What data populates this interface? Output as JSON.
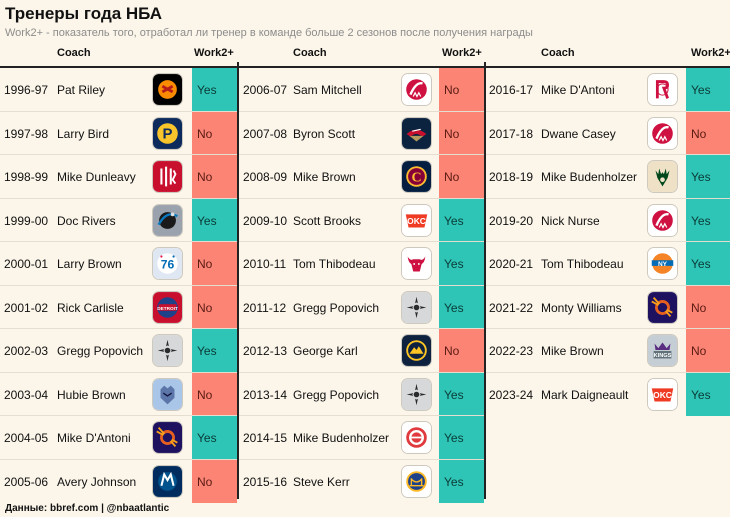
{
  "title": "Тренеры года НБА",
  "subtitle": "Work2+ - показатель того, отработал ли тренер в команде больше 2 сезонов после получения награды",
  "source": "Данные: bbref.com | @nbaatlantic",
  "headers": {
    "coach": "Coach",
    "work2": "Work2+"
  },
  "colors": {
    "yes": "#2ec4b6",
    "no": "#fb8475",
    "background": "#fcf6ea"
  },
  "columns": [
    {
      "rows": [
        {
          "season": "1996-97",
          "coach": "Pat Riley",
          "team": "heat-logo",
          "work2": "Yes"
        },
        {
          "season": "1997-98",
          "coach": "Larry Bird",
          "team": "pacers-logo",
          "work2": "No"
        },
        {
          "season": "1998-99",
          "coach": "Mike Dunleavy",
          "team": "trail-blazers-logo",
          "work2": "No"
        },
        {
          "season": "1999-00",
          "coach": "Doc Rivers",
          "team": "magic-logo",
          "work2": "Yes"
        },
        {
          "season": "2000-01",
          "coach": "Larry Brown",
          "team": "76ers-logo",
          "work2": "No"
        },
        {
          "season": "2001-02",
          "coach": "Rick Carlisle",
          "team": "pistons-logo",
          "work2": "No"
        },
        {
          "season": "2002-03",
          "coach": "Gregg Popovich",
          "team": "spurs-logo",
          "work2": "Yes"
        },
        {
          "season": "2003-04",
          "coach": "Hubie Brown",
          "team": "grizzlies-logo",
          "work2": "No"
        },
        {
          "season": "2004-05",
          "coach": "Mike D'Antoni",
          "team": "suns-logo",
          "work2": "Yes"
        },
        {
          "season": "2005-06",
          "coach": "Avery Johnson",
          "team": "mavericks-logo",
          "work2": "No"
        }
      ]
    },
    {
      "rows": [
        {
          "season": "2006-07",
          "coach": "Sam Mitchell",
          "team": "raptors-logo",
          "work2": "No"
        },
        {
          "season": "2007-08",
          "coach": "Byron Scott",
          "team": "pelicans-logo",
          "work2": "No"
        },
        {
          "season": "2008-09",
          "coach": "Mike Brown",
          "team": "cavaliers-logo",
          "work2": "No"
        },
        {
          "season": "2009-10",
          "coach": "Scott Brooks",
          "team": "thunder-logo",
          "work2": "Yes"
        },
        {
          "season": "2010-11",
          "coach": "Tom Thibodeau",
          "team": "bulls-logo",
          "work2": "Yes"
        },
        {
          "season": "2011-12",
          "coach": "Gregg Popovich",
          "team": "spurs-logo",
          "work2": "Yes"
        },
        {
          "season": "2012-13",
          "coach": "George Karl",
          "team": "nuggets-logo",
          "work2": "No"
        },
        {
          "season": "2013-14",
          "coach": "Gregg Popovich",
          "team": "spurs-logo",
          "work2": "Yes"
        },
        {
          "season": "2014-15",
          "coach": "Mike Budenholzer",
          "team": "hawks-logo",
          "work2": "Yes"
        },
        {
          "season": "2015-16",
          "coach": "Steve Kerr",
          "team": "warriors-logo",
          "work2": "Yes"
        }
      ]
    },
    {
      "rows": [
        {
          "season": "2016-17",
          "coach": "Mike D'Antoni",
          "team": "rockets-logo",
          "work2": "Yes"
        },
        {
          "season": "2017-18",
          "coach": "Dwane Casey",
          "team": "raptors-logo",
          "work2": "No"
        },
        {
          "season": "2018-19",
          "coach": "Mike Budenholzer",
          "team": "bucks-logo",
          "work2": "Yes"
        },
        {
          "season": "2019-20",
          "coach": "Nick Nurse",
          "team": "raptors-logo",
          "work2": "Yes"
        },
        {
          "season": "2020-21",
          "coach": "Tom Thibodeau",
          "team": "knicks-logo",
          "work2": "Yes"
        },
        {
          "season": "2021-22",
          "coach": "Monty Williams",
          "team": "suns-logo",
          "work2": "No"
        },
        {
          "season": "2022-23",
          "coach": "Mike Brown",
          "team": "kings-logo",
          "work2": "No"
        },
        {
          "season": "2023-24",
          "coach": "Mark Daigneault",
          "team": "thunder-logo",
          "work2": "Yes"
        }
      ]
    }
  ]
}
